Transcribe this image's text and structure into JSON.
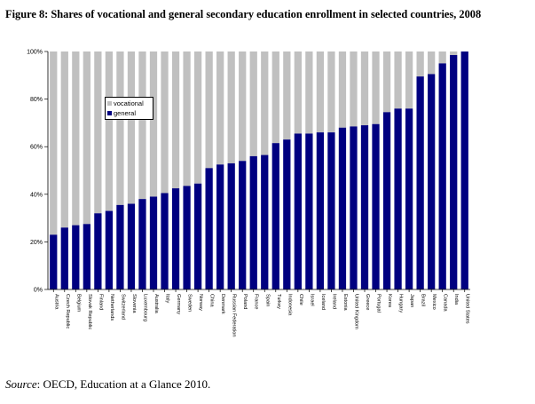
{
  "figure": {
    "title": "Figure 8: Shares of vocational and general secondary education enrollment in selected countries, 2008",
    "source_label": "Source",
    "source_text": ": OECD, Education at a Glance 2010."
  },
  "chart_data": {
    "type": "bar",
    "stacked": true,
    "categories": [
      "Austria",
      "Czech Republic",
      "Belgium",
      "Slovak Republic",
      "Finland",
      "Netherlands",
      "Switzerland",
      "Slovenia",
      "Luxembourg",
      "Australia",
      "Italy",
      "Germany",
      "Sweden",
      "Norway",
      "China",
      "Denmark",
      "Russian Federation",
      "Poland",
      "France",
      "Spain",
      "Turkey",
      "Indonesia",
      "Chile",
      "Israel",
      "Iceland",
      "Ireland",
      "Estonia",
      "United Kingdom",
      "Greece",
      "Portugal",
      "Korea",
      "Hungary",
      "Japan",
      "Brazil",
      "Mexico",
      "Canada",
      "India",
      "United States"
    ],
    "series": [
      {
        "name": "general",
        "color": "#000080",
        "values": [
          23,
          26,
          27,
          27.5,
          32,
          33,
          35.5,
          36,
          38,
          39,
          40.5,
          42.5,
          43.5,
          44.5,
          51,
          52.5,
          53,
          54,
          56,
          56.5,
          61.5,
          63,
          65.5,
          65.5,
          66,
          66,
          68,
          68.5,
          69,
          69.5,
          74.5,
          76,
          76,
          89.5,
          90.5,
          95,
          98.5,
          100
        ]
      },
      {
        "name": "vocational",
        "color": "#c0c0c0",
        "values": [
          77,
          74,
          73,
          72.5,
          68,
          67,
          64.5,
          64,
          62,
          61,
          59.5,
          57.5,
          56.5,
          55.5,
          49,
          47.5,
          47,
          46,
          44,
          43.5,
          38.5,
          37,
          34.5,
          34.5,
          34,
          34,
          32,
          31.5,
          31,
          30.5,
          25.5,
          24,
          24,
          10.5,
          9.5,
          5,
          1.5,
          0
        ]
      }
    ],
    "legend_order": [
      "vocational",
      "general"
    ],
    "ylim": [
      0,
      100
    ],
    "yticks": [
      "0%",
      "20%",
      "40%",
      "60%",
      "80%",
      "100%"
    ],
    "grid": false,
    "legend_position": "upper-left inside plot"
  }
}
